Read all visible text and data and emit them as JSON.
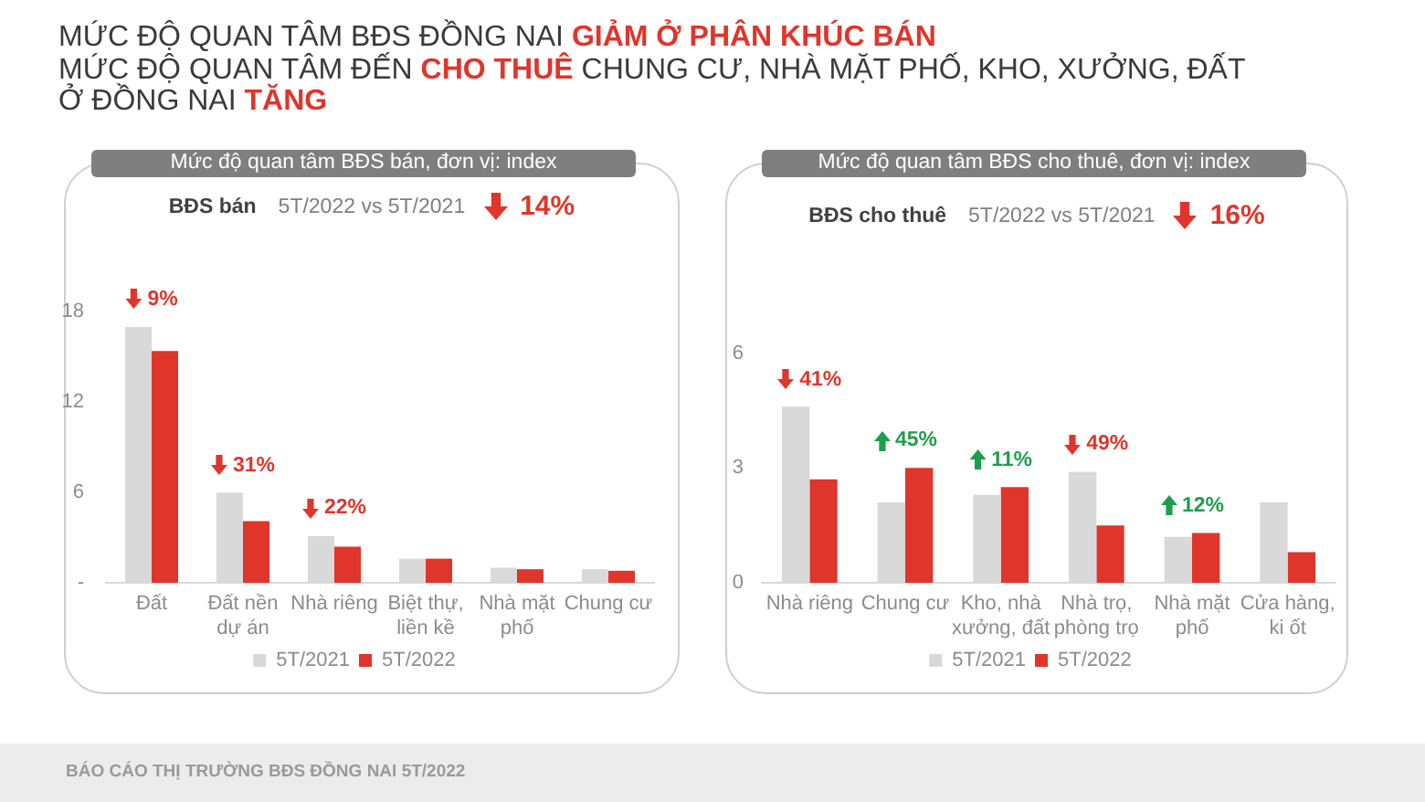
{
  "chart_data": [
    {
      "type": "other",
      "annotations": [
        "MỨC ĐỘ QUAN TÂM BĐS ĐỒNG NAI",
        "GIẢM Ở PHÂN KHÚC BÁN",
        "MỨC ĐỘ QUAN TÂM ĐẾN",
        "CHO THUÊ",
        "CHUNG CƯ, NHÀ MẶT PHỐ, KHO, XƯỞNG, ĐẤT",
        "Ở ĐỒNG NAI",
        "TĂNG"
      ]
    },
    {
      "type": "bar",
      "title": "Mức độ quan tâm BĐS bán, đơn vị: index",
      "subtitle": "BĐS bán",
      "categories": [
        "Đất",
        "Đất nền dự án",
        "Nhà riêng",
        "Biệt thự, liền kề",
        "Nhà mặt phố",
        "Chung cư"
      ],
      "series": [
        {
          "name": "5T/2021",
          "color": "#d9d9d9",
          "values": [
            17,
            6.0,
            3.1,
            1.6,
            1.0,
            0.9
          ]
        },
        {
          "name": "5T/2022",
          "color": "#e0352b",
          "values": [
            15.4,
            4.1,
            2.4,
            1.6,
            0.9,
            0.8
          ]
        }
      ],
      "ylim": [
        0,
        18
      ],
      "yticks": [
        {
          "value": 0,
          "label": "-"
        },
        6,
        12,
        18
      ],
      "legend": "bottom",
      "annotations": [
        "5T/2022 vs 5T/2021",
        "14%",
        {
          "text": "9%",
          "x": "Đất",
          "y": 17
        },
        {
          "text": "31%",
          "x": "Đất nền dự án",
          "y": 6.0
        },
        {
          "text": "22%",
          "x": "Nhà riêng",
          "y": 3.1
        }
      ]
    },
    {
      "type": "bar",
      "title": "Mức độ quan tâm BĐS cho thuê, đơn vị: index",
      "subtitle": "BĐS cho thuê",
      "categories": [
        "Nhà riêng",
        "Chung cư",
        "Kho, nhà xưởng, đất",
        "Nhà trọ, phòng trọ",
        "Nhà mặt phố",
        "Cửa hàng, ki ốt"
      ],
      "series": [
        {
          "name": "5T/2021",
          "color": "#d9d9d9",
          "values": [
            4.6,
            2.1,
            2.3,
            2.9,
            1.2,
            2.1
          ]
        },
        {
          "name": "5T/2022",
          "color": "#e0352b",
          "values": [
            2.7,
            3.0,
            2.5,
            1.5,
            1.3,
            0.8
          ]
        }
      ],
      "ylim": [
        0,
        6
      ],
      "yticks": [
        0,
        3,
        6
      ],
      "legend": "bottom",
      "annotations": [
        "5T/2022 vs 5T/2021",
        "16%",
        {
          "text": "41%",
          "x": "Nhà riêng",
          "y": 4.6
        },
        {
          "text": "45%",
          "x": "Chung cư",
          "y": 3.0
        },
        {
          "text": "11%",
          "x": "Kho, nhà xưởng, đất",
          "y": 2.5
        },
        {
          "text": "49%",
          "x": "Nhà trọ, phòng trọ",
          "y": 2.9
        },
        {
          "text": "12%",
          "x": "Nhà mặt phố",
          "y": 1.3
        }
      ]
    },
    {
      "type": "other",
      "annotations": [
        "BÁO CÁO THỊ TRƯỜNG BĐS ĐỒNG NAI 5T/2022"
      ]
    }
  ]
}
